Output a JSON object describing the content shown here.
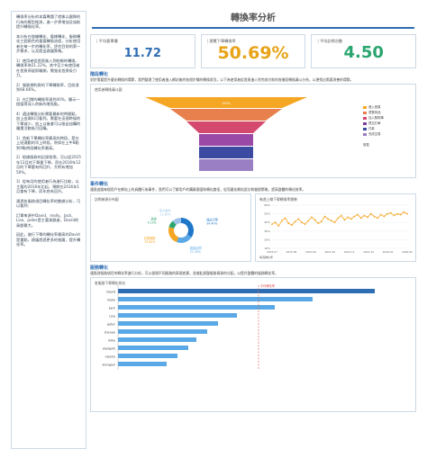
{
  "sidebar": {
    "paragraphs": [
      "轉換率分析的本篇專題了就像以團隊的行為的模型推測，進一步更增加及協助提升轉換化率。",
      "本分析在描繪轉化、看樣轉化、服務轉化三個角色的重要轉換流程，分析使用者在每一步的轉化率，評估目前的第一步需求，以及提出建議策略。",
      "1）使用者從首頁進入到結帳的轉換，轉換率為51.22%，其中至少有使用者在首頁停留即離開，需強化首頁吸引力。",
      "2）服務預約頁的下單轉換率，目前達到68.66%。",
      "3）在訂閱的轉換率達到40%，顯示一個值得深入的新的增長點。",
      "4）遞送轉換分析需要最新的時間點，加上由資料可看到，需要在這個時候的下單減少，加上以後會可以推出加購的優惠活動吸引回購。",
      "1）首新下單轉化率最高的時段，是在上班通勤的早上時段，例如在上午8點到9點時段轉化率最高。",
      "2）根據服務的記錄發現，可以從2015年12月的下單量下降，而在2016年12月的下單量有所回升，大約有增加50%。",
      "3）從每月的使用者行為進行比較，以主要的2016年比起，預期在2016年1月會有下降，而年底有回升。",
      "通過各服務項目轉化率的數據分析，可以看到：",
      "訂單來源中David、molly、Jack、Lisa、peter是主要貢獻者，David的貢獻最大。",
      "因此，進行下單的轉化率最高的David是重點，建議透過更多的推廣，提升轉化率。"
    ]
  },
  "title": "轉換率分析",
  "kpis": [
    {
      "label": "平均客單價",
      "value": "11.72"
    },
    {
      "label": "瀏覽下單轉換率",
      "value": "50.69%"
    },
    {
      "label": "平均訪問次數",
      "value": "4.50"
    }
  ],
  "sections": [
    {
      "heading": "階段轉化",
      "text": "對於需要提升優化轉換的環節，我們整理了使用者進入網站後的各個步驟的轉換狀況，以下為使用者從首頁進入到完成付款的各階段轉換漏斗分析，以便找出需要改善的環節。"
    },
    {
      "heading": "事件轉化",
      "text": "通過追蹤每個用戶在網站上的具體行為事件，我們可以了解用戶的購買意圖和轉化路徑，從而優化網站設計和營銷策略，提高整體的轉化效率。"
    },
    {
      "heading": "服務轉化",
      "text": "通過對服務項目的轉化率進行分析，可以發現不同服務的表現差異，並據此調整服務資源的分配，以提升整體的服務轉化率。"
    }
  ],
  "funnel": {
    "title": "使用者轉換漏斗圖",
    "legend": [
      "進入首頁",
      "瀏覽商品",
      "加入購物車",
      "提交訂單",
      "付款",
      "完成交易"
    ],
    "legend_colors": [
      "#f5a623",
      "#e8804e",
      "#d44a6e",
      "#7b3f9e",
      "#3c4ba1",
      "#9a7fc4"
    ],
    "top_value": "100%",
    "side_label": "首頁"
  },
  "donut": {
    "title": "訪問來源分布圖",
    "labels": [
      "搜尋引擎",
      "直接訪問",
      "社群媒體",
      "其他",
      "電子郵件"
    ],
    "values": [
      34.4,
      21.3,
      23.6,
      9.1,
      11.6
    ],
    "value_labels": [
      "34.40%",
      "21.30%",
      "23.60%",
      "9.10%",
      "11.60%"
    ],
    "colors": [
      "#1f77c9",
      "#5aa9e6",
      "#f5a623",
      "#2aa56f",
      "#a0c4e8"
    ]
  },
  "line": {
    "title": "每週上線下單轉換率趨勢",
    "y_ticks": [
      "60%",
      "50%",
      "40%",
      "30%",
      "20%",
      "10%"
    ],
    "x_labels": [
      "2015-07",
      "2015-08",
      "2015-09",
      "2015-10",
      "2015-11",
      "2015-12",
      "2016-01",
      "2016-02"
    ],
    "values": [
      38,
      40,
      36,
      42,
      45,
      39,
      37,
      41,
      44,
      40,
      38,
      42,
      46,
      43,
      39,
      41,
      47,
      44,
      42,
      40,
      45,
      48,
      43,
      46,
      44,
      47,
      49,
      45,
      48,
      46,
      50,
      47,
      45,
      49,
      47,
      50,
      51,
      48,
      50,
      49,
      52,
      50
    ],
    "legend": "每週轉化率"
  },
  "bars": {
    "title": "各服務下單轉化排名",
    "reference_label": "平均轉化率",
    "names": [
      "David",
      "molly",
      "Jack",
      "Lisa",
      "peter",
      "shenye",
      "mike",
      "wangshi",
      "xiaohu",
      "xiangjun"
    ],
    "values": [
      95,
      72,
      58,
      44,
      37,
      33,
      29,
      26,
      22,
      18
    ],
    "reference_value": 52
  }
}
